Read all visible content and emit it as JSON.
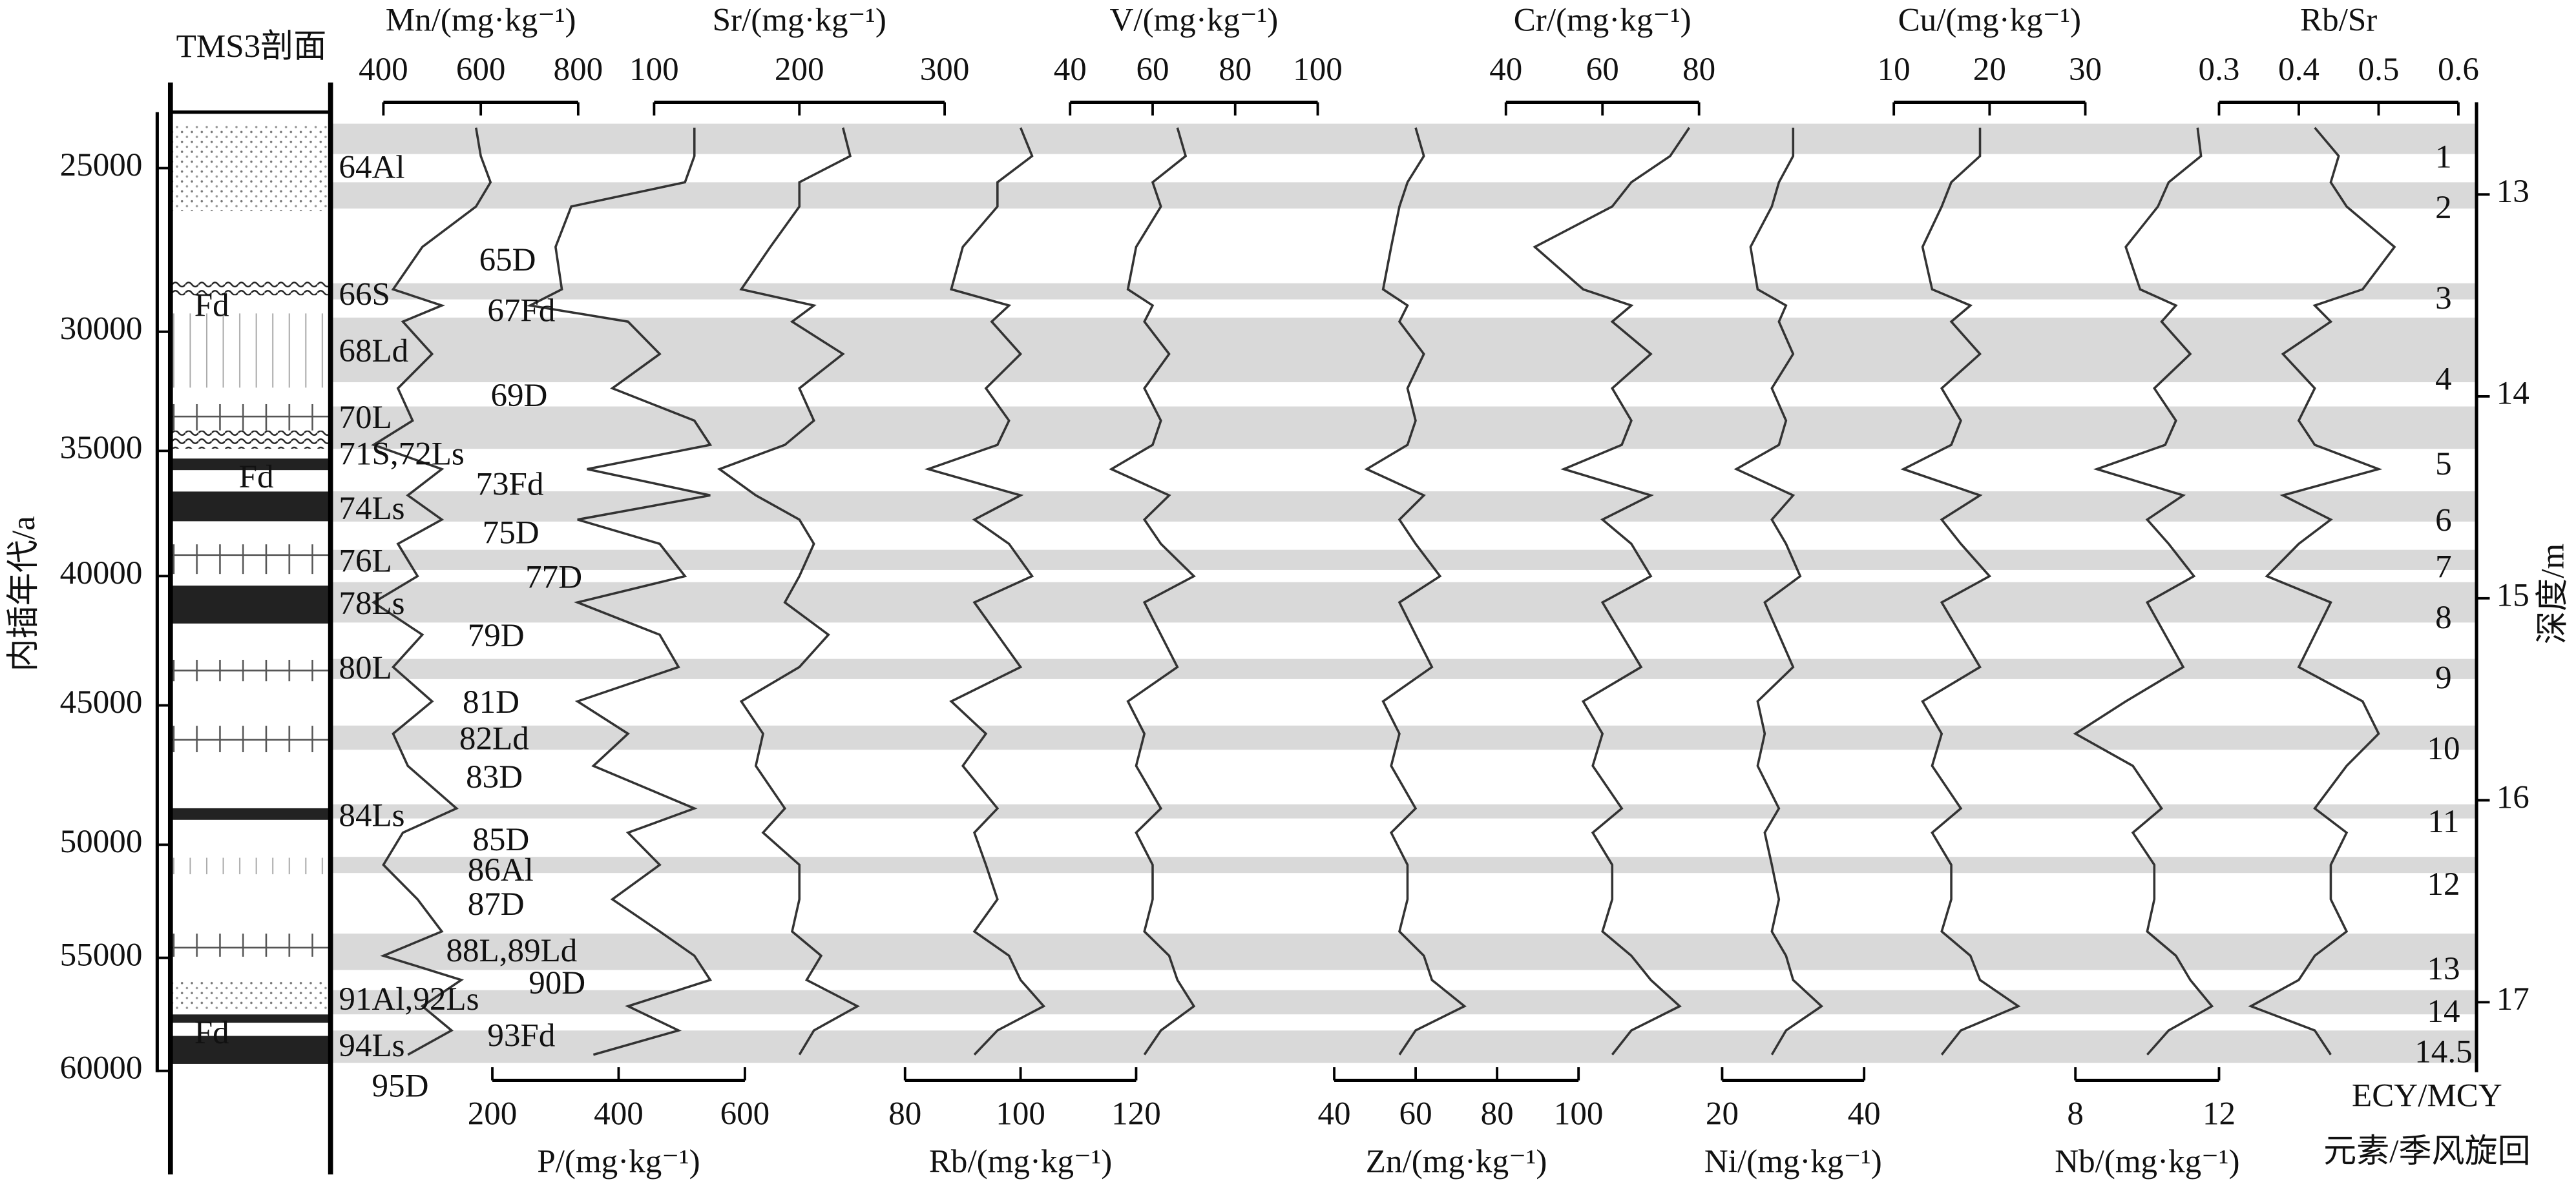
{
  "chart_data": {
    "type": "line",
    "section_title": "TMS3剖面",
    "age_axis": {
      "label": "内插年代/a",
      "ticks": [
        25000,
        30000,
        35000,
        40000,
        45000,
        50000,
        55000,
        60000
      ],
      "tick_depths": [
        12.87,
        13.68,
        14.27,
        14.89,
        15.53,
        16.22,
        16.78,
        17.34
      ]
    },
    "depth_axis": {
      "label": "深度/m",
      "ylim": [
        12.65,
        17.33
      ],
      "yticks": [
        13,
        14,
        15,
        16,
        17
      ]
    },
    "depth": [
      12.67,
      12.81,
      12.94,
      13.06,
      13.26,
      13.47,
      13.55,
      13.63,
      13.79,
      13.96,
      14.12,
      14.24,
      14.36,
      14.49,
      14.61,
      14.73,
      14.89,
      15.02,
      15.18,
      15.34,
      15.51,
      15.67,
      15.83,
      16.04,
      16.16,
      16.32,
      16.49,
      16.65,
      16.77,
      16.89,
      17.02,
      17.14,
      17.26
    ],
    "series": [
      {
        "name": "Mn/(mg·kg⁻¹)",
        "axis": "top",
        "color": "#333333",
        "xlim": [
          400,
          800
        ],
        "xticks": [
          400,
          600,
          800
        ],
        "values": [
          590,
          600,
          620,
          590,
          480,
          420,
          520,
          440,
          500,
          430,
          460,
          380,
          520,
          450,
          520,
          430,
          470,
          380,
          480,
          420,
          500,
          420,
          450,
          550,
          440,
          400,
          470,
          520,
          400,
          560,
          480,
          540,
          450
        ]
      },
      {
        "name": "P/(mg·kg⁻¹)",
        "axis": "bottom",
        "color": "#333333",
        "xlim": [
          200,
          600
        ],
        "xticks": [
          200,
          400,
          600
        ],
        "values": [
          520,
          520,
          505,
          325,
          300,
          310,
          260,
          415,
          465,
          390,
          520,
          545,
          350,
          545,
          335,
          465,
          505,
          335,
          465,
          495,
          335,
          415,
          360,
          520,
          415,
          465,
          390,
          465,
          520,
          545,
          415,
          495,
          360
        ]
      },
      {
        "name": "Sr/(mg·kg⁻¹)",
        "axis": "top",
        "color": "#333333",
        "xlim": [
          100,
          300
        ],
        "xticks": [
          100,
          200,
          300
        ],
        "values": [
          230,
          235,
          200,
          200,
          180,
          160,
          210,
          195,
          230,
          200,
          210,
          190,
          145,
          170,
          200,
          210,
          200,
          190,
          220,
          200,
          160,
          175,
          170,
          190,
          175,
          200,
          200,
          195,
          215,
          205,
          240,
          210,
          200
        ]
      },
      {
        "name": "Rb/(mg·kg⁻¹)",
        "axis": "bottom",
        "color": "#333333",
        "xlim": [
          80,
          120
        ],
        "xticks": [
          80,
          100,
          120
        ],
        "values": [
          100,
          102,
          96,
          96,
          90,
          88,
          98,
          95,
          100,
          94,
          98,
          96,
          84,
          100,
          92,
          98,
          102,
          92,
          96,
          100,
          88,
          94,
          90,
          96,
          92,
          94,
          96,
          92,
          98,
          100,
          104,
          96,
          92
        ]
      },
      {
        "name": "V/(mg·kg⁻¹)",
        "axis": "top",
        "color": "#333333",
        "xlim": [
          40,
          100
        ],
        "xticks": [
          40,
          60,
          80,
          100
        ],
        "values": [
          66,
          68,
          60,
          62,
          56,
          54,
          60,
          58,
          64,
          58,
          62,
          60,
          50,
          64,
          58,
          62,
          70,
          58,
          62,
          66,
          54,
          58,
          56,
          62,
          56,
          60,
          60,
          58,
          64,
          66,
          70,
          62,
          58
        ]
      },
      {
        "name": "Zn/(mg·kg⁻¹)",
        "axis": "bottom",
        "color": "#333333",
        "xlim": [
          40,
          100
        ],
        "xticks": [
          40,
          60,
          80,
          100
        ],
        "values": [
          60,
          62,
          58,
          56,
          54,
          52,
          58,
          56,
          62,
          58,
          60,
          58,
          48,
          62,
          56,
          60,
          66,
          56,
          60,
          64,
          52,
          56,
          54,
          60,
          54,
          58,
          58,
          56,
          62,
          64,
          72,
          60,
          56
        ]
      },
      {
        "name": "Cr/(mg·kg⁻¹)",
        "axis": "top",
        "color": "#333333",
        "xlim": [
          40,
          80
        ],
        "xticks": [
          40,
          60,
          80
        ],
        "values": [
          78,
          74,
          66,
          62,
          46,
          56,
          66,
          62,
          70,
          62,
          66,
          64,
          52,
          70,
          60,
          66,
          70,
          60,
          64,
          68,
          56,
          60,
          58,
          64,
          58,
          62,
          62,
          60,
          66,
          70,
          76,
          66,
          62
        ]
      },
      {
        "name": "Ni/(mg·kg⁻¹)",
        "axis": "bottom",
        "color": "#333333",
        "xlim": [
          20,
          40
        ],
        "xticks": [
          20,
          40
        ],
        "values": [
          30,
          30,
          28,
          27,
          24,
          25,
          29,
          28,
          30,
          27,
          29,
          28,
          22,
          30,
          27,
          29,
          31,
          26,
          28,
          30,
          25,
          26,
          25,
          28,
          26,
          27,
          28,
          27,
          29,
          30,
          34,
          29,
          27
        ]
      },
      {
        "name": "Cu/(mg·kg⁻¹)",
        "axis": "top",
        "color": "#333333",
        "xlim": [
          10,
          30
        ],
        "xticks": [
          10,
          20,
          30
        ],
        "values": [
          19,
          19,
          16,
          15,
          13,
          14,
          18,
          16,
          19,
          15,
          17,
          16,
          11,
          19,
          15,
          17,
          20,
          15,
          17,
          19,
          13,
          15,
          14,
          17,
          14,
          16,
          16,
          15,
          18,
          19,
          23,
          17,
          15
        ]
      },
      {
        "name": "Nb/(mg·kg⁻¹)",
        "axis": "bottom",
        "color": "#333333",
        "xlim": [
          8,
          12
        ],
        "xticks": [
          8,
          12
        ],
        "values": [
          11.4,
          11.5,
          10.6,
          10.3,
          9.4,
          9.8,
          10.8,
          10.4,
          11.2,
          10.2,
          10.8,
          10.5,
          8.6,
          11,
          10,
          10.6,
          11.3,
          10,
          10.5,
          11,
          9.4,
          8,
          9.6,
          10.4,
          9.6,
          10.2,
          10.2,
          10,
          10.8,
          11.2,
          11.8,
          10.6,
          10
        ]
      },
      {
        "name": "Rb/Sr",
        "axis": "top",
        "color": "#333333",
        "xlim": [
          0.3,
          0.6
        ],
        "xticks": [
          0.3,
          0.4,
          0.5,
          0.6
        ],
        "values": [
          0.42,
          0.45,
          0.44,
          0.46,
          0.52,
          0.48,
          0.42,
          0.44,
          0.38,
          0.42,
          0.4,
          0.42,
          0.5,
          0.38,
          0.44,
          0.4,
          0.36,
          0.44,
          0.42,
          0.4,
          0.48,
          0.5,
          0.46,
          0.42,
          0.46,
          0.44,
          0.44,
          0.46,
          0.42,
          0.4,
          0.34,
          0.42,
          0.44
        ]
      }
    ],
    "shaded_intervals": [
      [
        12.65,
        12.8
      ],
      [
        12.94,
        13.07
      ],
      [
        13.44,
        13.52
      ],
      [
        13.61,
        13.93
      ],
      [
        14.05,
        14.26
      ],
      [
        14.47,
        14.62
      ],
      [
        14.76,
        14.86
      ],
      [
        14.92,
        15.12
      ],
      [
        15.3,
        15.4
      ],
      [
        15.63,
        15.75
      ],
      [
        16.02,
        16.09
      ],
      [
        16.28,
        16.36
      ],
      [
        16.66,
        16.84
      ],
      [
        16.94,
        17.06
      ],
      [
        17.14,
        17.3
      ]
    ],
    "shade_color": "#d9d9d9",
    "cycles": {
      "label": "ECY/MCY",
      "names": [
        "1",
        "2",
        "3",
        "4",
        "5",
        "6",
        "7",
        "8",
        "9",
        "10",
        "11",
        "12",
        "13",
        "14",
        "14.5"
      ],
      "depths": [
        12.83,
        13.08,
        13.53,
        13.93,
        14.35,
        14.63,
        14.86,
        15.11,
        15.41,
        15.76,
        16.12,
        16.43,
        16.85,
        17.06,
        17.26
      ]
    },
    "cycle_caption": "元素/季风旋回",
    "layers": {
      "names": [
        "64Al",
        "65D",
        "66S",
        "67Fd",
        "68Ld",
        "69D",
        "70L",
        "71S,72Ls",
        "73Fd",
        "74Ls",
        "75D",
        "76L",
        "77D",
        "78Ls",
        "79D",
        "80L",
        "81D",
        "82Ld",
        "83D",
        "84Ls",
        "85D",
        "86Al",
        "87D",
        "88L,89Ld",
        "90D",
        "91Al,92Ls",
        "93Fd",
        "94Ls",
        "95D"
      ],
      "depths": [
        12.88,
        13.34,
        13.51,
        13.59,
        13.79,
        14.01,
        14.12,
        14.3,
        14.45,
        14.57,
        14.69,
        14.83,
        14.91,
        15.04,
        15.2,
        15.36,
        15.53,
        15.71,
        15.9,
        16.09,
        16.21,
        16.36,
        16.53,
        16.76,
        16.92,
        17.0,
        17.18,
        17.23,
        17.43
      ]
    },
    "facies_labels": [
      "Fd",
      "Fd",
      "Fd"
    ]
  }
}
